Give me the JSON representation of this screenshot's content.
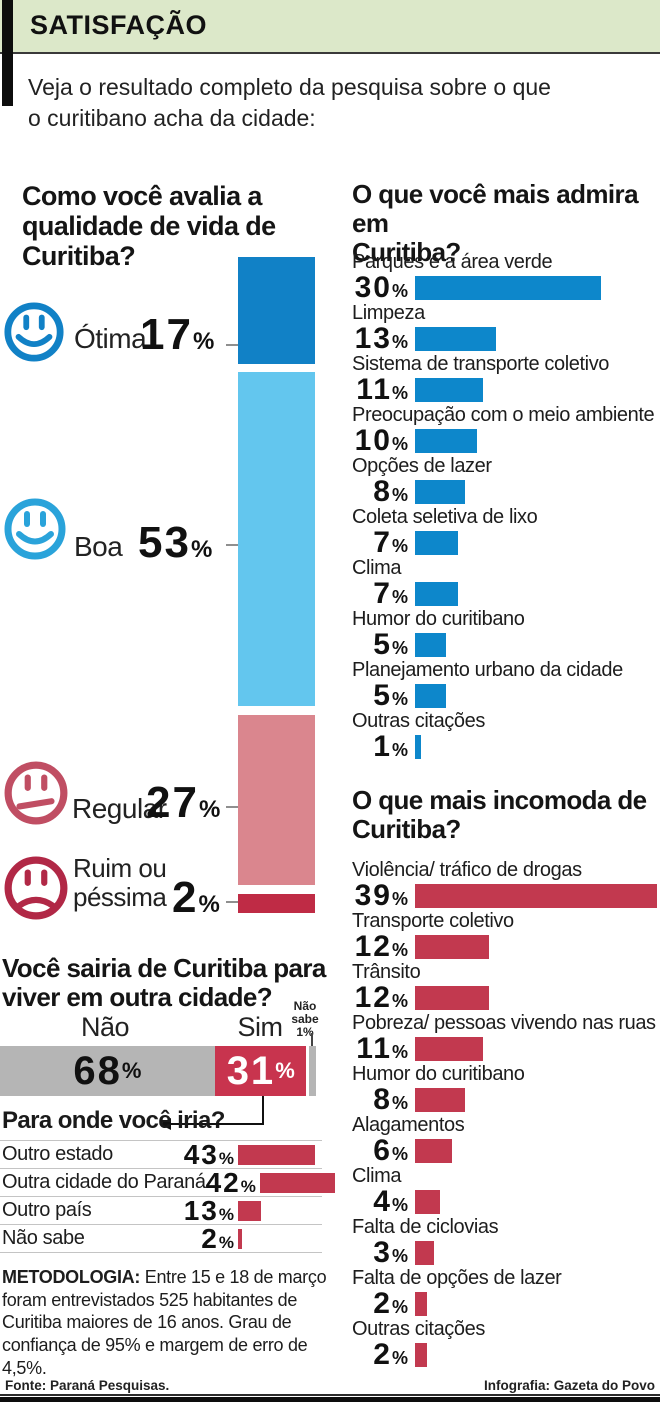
{
  "percent_sign": "%",
  "header": {
    "title": "SATISFAÇÃO",
    "intro": "Veja o resultado completo da pesquisa sobre o que\no curitibano acha da cidade:"
  },
  "quality": {
    "heading": "Como você avalia a\nqualidade de vida de\nCuritiba?",
    "items": [
      {
        "label": "Ótima",
        "value": 17,
        "color": "#1181c6",
        "icon_color": "#1181c6",
        "mood": "happy"
      },
      {
        "label": "Boa",
        "value": 53,
        "color": "#63c6ee",
        "icon_color": "#2aa3da",
        "mood": "happy"
      },
      {
        "label": "Regular",
        "value": 27,
        "color": "#da868e",
        "icon_color": "#c04e63",
        "mood": "neutral"
      },
      {
        "label": "Ruim ou\npéssima",
        "value": 2,
        "color": "#bf2b45",
        "icon_color": "#b12846",
        "mood": "sad"
      }
    ]
  },
  "admire": {
    "heading": "O que você mais admira em\nCuritiba?",
    "bar_color": "#0d87cb",
    "items": [
      {
        "label": "Parques e a área verde",
        "value": 30
      },
      {
        "label": "Limpeza",
        "value": 13
      },
      {
        "label": "Sistema de transporte coletivo",
        "value": 11
      },
      {
        "label": "Preocupação com o meio ambiente",
        "value": 10
      },
      {
        "label": "Opções de lazer",
        "value": 8
      },
      {
        "label": "Coleta seletiva de lixo",
        "value": 7
      },
      {
        "label": "Clima",
        "value": 7
      },
      {
        "label": "Humor do curitibano",
        "value": 5
      },
      {
        "label": "Planejamento urbano da cidade",
        "value": 5
      },
      {
        "label": "Outras citações",
        "value": 1
      }
    ]
  },
  "bother": {
    "heading": "O que mais incomoda de\nCuritiba?",
    "bar_color": "#c2394f",
    "items": [
      {
        "label": "Violência/ tráfico de drogas",
        "value": 39
      },
      {
        "label": "Transporte coletivo",
        "value": 12
      },
      {
        "label": "Trânsito",
        "value": 12
      },
      {
        "label": "Pobreza/ pessoas vivendo nas ruas",
        "value": 11
      },
      {
        "label": "Humor do curitibano",
        "value": 8
      },
      {
        "label": "Alagamentos",
        "value": 6
      },
      {
        "label": "Clima",
        "value": 4
      },
      {
        "label": "Falta de ciclovias",
        "value": 3
      },
      {
        "label": "Falta de opções de lazer",
        "value": 2
      },
      {
        "label": "Outras citações",
        "value": 2
      }
    ]
  },
  "leave": {
    "heading": "Você sairia de Curitiba para\nviver em outra cidade?",
    "no": {
      "label": "Não",
      "value": 68,
      "color": "#b5b5b5"
    },
    "yes": {
      "label": "Sim",
      "value": 31,
      "color": "#c8344e"
    },
    "dontknow": {
      "label": "Não\nsabe\n1%",
      "value": 1
    }
  },
  "destination": {
    "heading": "Para onde você iria?",
    "bar_color": "#c2394f",
    "items": [
      {
        "label": "Outro estado",
        "value": 43
      },
      {
        "label": "Outra cidade do Paraná",
        "value": 42
      },
      {
        "label": "Outro país",
        "value": 13
      },
      {
        "label": "Não sabe",
        "value": 2
      }
    ]
  },
  "methodology": {
    "label": "METODOLOGIA:",
    "text": " Entre 15 e 18 de março foram entrevistados 525 habitantes de Curitiba maiores de 16 anos. Grau de confiança de 95% e margem de erro de 4,5%."
  },
  "footer": {
    "source": "Fonte: Paraná Pesquisas.",
    "credit": "Infografia: Gazeta do Povo"
  },
  "chart_data": [
    {
      "type": "bar",
      "title": "Como você avalia a qualidade de vida de Curitiba?",
      "categories": [
        "Ótima",
        "Boa",
        "Regular",
        "Ruim ou péssima"
      ],
      "values": [
        17,
        53,
        27,
        2
      ],
      "unit": "%",
      "layout": "stacked-vertical",
      "colors": [
        "#1181c6",
        "#63c6ee",
        "#da868e",
        "#bf2b45"
      ]
    },
    {
      "type": "bar",
      "title": "O que você mais admira em Curitiba?",
      "categories": [
        "Parques e a área verde",
        "Limpeza",
        "Sistema de transporte coletivo",
        "Preocupação com o meio ambiente",
        "Opções de lazer",
        "Coleta seletiva de lixo",
        "Clima",
        "Humor do curitibano",
        "Planejamento urbano da cidade",
        "Outras citações"
      ],
      "values": [
        30,
        13,
        11,
        10,
        8,
        7,
        7,
        5,
        5,
        1
      ],
      "unit": "%",
      "layout": "horizontal",
      "color": "#0d87cb"
    },
    {
      "type": "bar",
      "title": "O que mais incomoda de Curitiba?",
      "categories": [
        "Violência/ tráfico de drogas",
        "Transporte coletivo",
        "Trânsito",
        "Pobreza/ pessoas vivendo nas ruas",
        "Humor do curitibano",
        "Alagamentos",
        "Clima",
        "Falta de ciclovias",
        "Falta de opções de lazer",
        "Outras citações"
      ],
      "values": [
        39,
        12,
        12,
        11,
        8,
        6,
        4,
        3,
        2,
        2
      ],
      "unit": "%",
      "layout": "horizontal",
      "color": "#c2394f"
    },
    {
      "type": "bar",
      "title": "Você sairia de Curitiba para viver em outra cidade?",
      "categories": [
        "Não",
        "Sim",
        "Não sabe"
      ],
      "values": [
        68,
        31,
        1
      ],
      "unit": "%",
      "layout": "stacked-horizontal",
      "colors": [
        "#b5b5b5",
        "#c8344e",
        "#b5b5b5"
      ]
    },
    {
      "type": "bar",
      "title": "Para onde você iria?",
      "categories": [
        "Outro estado",
        "Outra cidade do Paraná",
        "Outro país",
        "Não sabe"
      ],
      "values": [
        43,
        42,
        13,
        2
      ],
      "unit": "%",
      "layout": "horizontal",
      "color": "#c2394f"
    }
  ]
}
